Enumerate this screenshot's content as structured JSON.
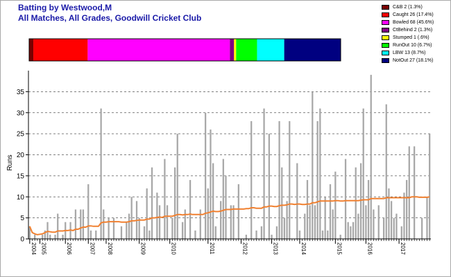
{
  "titles": {
    "line1": "Batting by Westwood,M",
    "line2": "All Matches, All Grades, Goodwill Cricket Club"
  },
  "dismissals": [
    {
      "label": "C&B 2 (1.3%)",
      "count": 2,
      "pct": 1.3,
      "color": "#7a0000"
    },
    {
      "label": "Caught 26 (17.4%)",
      "count": 26,
      "pct": 17.4,
      "color": "#ff0000"
    },
    {
      "label": "Bowled 68 (45.6%)",
      "count": 68,
      "pct": 45.6,
      "color": "#ff00ff"
    },
    {
      "label": "CtBehind 2 (1.3%)",
      "count": 2,
      "pct": 1.3,
      "color": "#800080"
    },
    {
      "label": "Stumped 1 (.6%)",
      "count": 1,
      "pct": 0.6,
      "color": "#ffff00"
    },
    {
      "label": "RunOut 10 (6.7%)",
      "count": 10,
      "pct": 6.7,
      "color": "#00ff00"
    },
    {
      "label": "LBW 13 (8.7%)",
      "count": 13,
      "pct": 8.7,
      "color": "#00ffff"
    },
    {
      "label": "NotOut 27 (18.1%)",
      "count": 27,
      "pct": 18.1,
      "color": "#000080"
    }
  ],
  "chart_data": {
    "type": "bar",
    "ylabel": "Runs",
    "xlabel": "",
    "ylim": [
      0,
      40
    ],
    "yticks": [
      0,
      5,
      10,
      15,
      20,
      25,
      30,
      35
    ],
    "grid": true,
    "year_ticks": [
      {
        "label": "2004",
        "index": 0
      },
      {
        "label": "2005",
        "index": 4
      },
      {
        "label": "2006",
        "index": 14
      },
      {
        "label": "2007",
        "index": 23
      },
      {
        "label": "2008",
        "index": 30
      },
      {
        "label": "2009",
        "index": 43
      },
      {
        "label": "2010",
        "index": 55
      },
      {
        "label": "2011",
        "index": 70
      },
      {
        "label": "2012",
        "index": 83
      },
      {
        "label": "2013",
        "index": 95
      },
      {
        "label": "2014",
        "index": 106
      },
      {
        "label": "2015",
        "index": 120
      },
      {
        "label": "2016",
        "index": 132
      },
      {
        "label": "2017",
        "index": 145
      }
    ],
    "series": [
      {
        "values": [
          3,
          0,
          1,
          0,
          0,
          1,
          2,
          4,
          1,
          0,
          1,
          6,
          0,
          1,
          4,
          0,
          4,
          0,
          7,
          0,
          7,
          7,
          0,
          13,
          2,
          0,
          2,
          0,
          31,
          7,
          0,
          5,
          0,
          5,
          0,
          0,
          3,
          0,
          4,
          6,
          10,
          0,
          9,
          5,
          0,
          3,
          12,
          2,
          17,
          0,
          11,
          8,
          0,
          19,
          8,
          0,
          5,
          17,
          25,
          0,
          4,
          7,
          0,
          14,
          0,
          2,
          0,
          7,
          0,
          30,
          12,
          26,
          18,
          3,
          0,
          9,
          19,
          15,
          0,
          8,
          8,
          0,
          13,
          0,
          0,
          1,
          0,
          28,
          0,
          2,
          0,
          3,
          31,
          0,
          25,
          1,
          0,
          3,
          28,
          17,
          5,
          9,
          28,
          0,
          0,
          18,
          2,
          0,
          6,
          14,
          8,
          35,
          8,
          28,
          31,
          2,
          10,
          2,
          13,
          7,
          16,
          0,
          1,
          0,
          19,
          4,
          3,
          4,
          17,
          6,
          18,
          31,
          8,
          14,
          39,
          7,
          0,
          8,
          0,
          5,
          32,
          12,
          9,
          5,
          6,
          0,
          3,
          11,
          14,
          22,
          0,
          22,
          0,
          0,
          5,
          0,
          10,
          25
        ],
        "color": "#a8a8a8"
      },
      {
        "type": "line",
        "color": "#f08030",
        "values": [
          3,
          1.5,
          1.2,
          1,
          1.1,
          1.2,
          1.5,
          1.8,
          1.7,
          1.6,
          1.6,
          1.9,
          1.9,
          1.9,
          2,
          2,
          2.1,
          2,
          2.3,
          2.3,
          2.6,
          2.8,
          2.8,
          3.1,
          3.1,
          3,
          3,
          3,
          3.8,
          4,
          4,
          4.1,
          4.1,
          4.1,
          4.1,
          4.1,
          4,
          4,
          4,
          4.1,
          4.3,
          4.3,
          4.4,
          4.5,
          4.5,
          4.5,
          4.7,
          4.7,
          5,
          5,
          5.1,
          5.2,
          5.1,
          5.4,
          5.4,
          5.4,
          5.4,
          5.6,
          5.8,
          5.8,
          5.7,
          5.8,
          5.8,
          5.9,
          5.8,
          5.8,
          5.8,
          5.8,
          5.8,
          6.1,
          6.2,
          6.4,
          6.6,
          6.5,
          6.5,
          6.6,
          6.8,
          7,
          7,
          7,
          7.1,
          7.1,
          7.1,
          7.1,
          7.1,
          7.2,
          7.2,
          7.4,
          7.4,
          7.3,
          7.3,
          7.3,
          7.6,
          7.6,
          7.8,
          7.8,
          7.7,
          7.7,
          7.9,
          8,
          8,
          8.1,
          8.3,
          8.3,
          8.2,
          8.3,
          8.3,
          8.2,
          8.2,
          8.3,
          8.3,
          8.6,
          8.6,
          8.8,
          9,
          9,
          9,
          9,
          9,
          9,
          9.1,
          9.1,
          9,
          9,
          9.1,
          9.1,
          9.1,
          9.1,
          9.1,
          9.1,
          9.2,
          9.3,
          9.3,
          9.3,
          9.6,
          9.6,
          9.6,
          9.6,
          9.6,
          9.6,
          9.8,
          9.8,
          9.8,
          9.8,
          9.8,
          9.8,
          9.8,
          9.8,
          9.8,
          9.8,
          10,
          10,
          10,
          9.9,
          9.9,
          9.9,
          9.9,
          10
        ]
      }
    ]
  }
}
